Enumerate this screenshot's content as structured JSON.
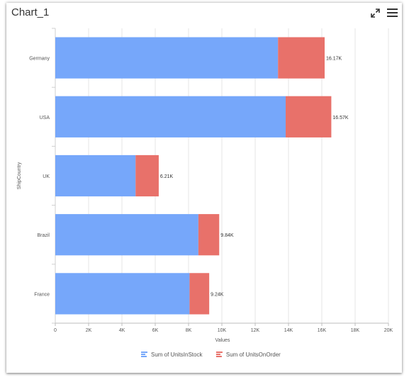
{
  "widget": {
    "title": "Chart_1",
    "icons": {
      "expand": "expand-arrows-icon",
      "menu": "hamburger-menu-icon"
    }
  },
  "chart_data": {
    "type": "bar",
    "orientation": "horizontal",
    "stacked": true,
    "categories": [
      "Germany",
      "USA",
      "UK",
      "Brazil",
      "France"
    ],
    "series": [
      {
        "name": "Sum of UnitsInStock",
        "color": "#76a7fa",
        "values": [
          13370,
          13830,
          4820,
          8590,
          8060
        ]
      },
      {
        "name": "Sum of UnitsOnOrder",
        "color": "#e8716a",
        "values": [
          2800,
          2740,
          1390,
          1250,
          1180
        ]
      }
    ],
    "totals_labels": [
      "16.17K",
      "16.57K",
      "6.21K",
      "9.84K",
      "9.24K"
    ],
    "xlabel": "Values",
    "ylabel": "ShipCountry",
    "xlim": [
      0,
      20000
    ],
    "xticks": [
      {
        "v": 0,
        "label": "0"
      },
      {
        "v": 2000,
        "label": "2K"
      },
      {
        "v": 4000,
        "label": "4K"
      },
      {
        "v": 6000,
        "label": "6K"
      },
      {
        "v": 8000,
        "label": "8K"
      },
      {
        "v": 10000,
        "label": "10K"
      },
      {
        "v": 12000,
        "label": "12K"
      },
      {
        "v": 14000,
        "label": "14K"
      },
      {
        "v": 16000,
        "label": "16K"
      },
      {
        "v": 18000,
        "label": "18K"
      },
      {
        "v": 20000,
        "label": "20K"
      }
    ],
    "grid": true,
    "legend_position": "bottom"
  }
}
